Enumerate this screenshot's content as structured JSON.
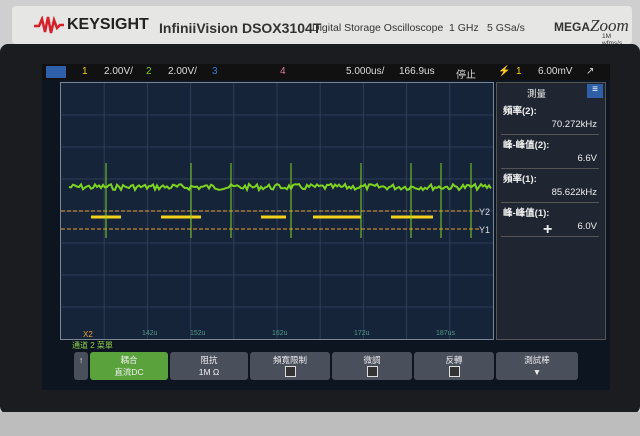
{
  "brand": {
    "name": "KEYSIGHT",
    "model": "InfiniiVision DSOX3104T",
    "description": "Digital Storage Oscilloscope",
    "bandwidth": "1 GHz",
    "sample_rate": "5 GSa/s",
    "mega": "MEGA",
    "zoom": "Zoom",
    "wfms": "1M wfms/s"
  },
  "status": {
    "ch1_label": "1",
    "ch1_scale": "2.00V/",
    "ch2_label": "2",
    "ch2_scale": "2.00V/",
    "ch3_label": "3",
    "ch4_label": "4",
    "timebase": "5.000us/",
    "delay": "166.9us",
    "run_state": "停止",
    "trigger_source": "1",
    "trigger_level": "6.00mV"
  },
  "colors": {
    "ch1": "#f2d21b",
    "ch2": "#7ed321",
    "ch3": "#3a7bd5",
    "ch4": "#e07aa0",
    "cursor": "#e8a030",
    "menu_accent": "#2e5fa8"
  },
  "measurements": {
    "title": "測量",
    "items": [
      {
        "label": "頻率(2):",
        "value": "70.272kHz"
      },
      {
        "label": "峰-峰值(2):",
        "value": "6.6V"
      },
      {
        "label": "頻率(1):",
        "value": "85.622kHz"
      },
      {
        "label": "峰-峰值(1):",
        "value": "6.0V"
      }
    ],
    "add": "+"
  },
  "cursors": {
    "y1": "Y1",
    "y2": "Y2",
    "x2": "X2"
  },
  "time_labels": [
    "142u",
    "152u",
    "162u",
    "172u",
    "187us"
  ],
  "softkeys": {
    "menu_title": "通道 2 菜單",
    "keys": [
      {
        "title": "耦合",
        "value": "直流DC"
      },
      {
        "title": "阻抗",
        "value": "1M Ω"
      },
      {
        "title": "頻寬限制",
        "value": ""
      },
      {
        "title": "微調",
        "value": ""
      },
      {
        "title": "反轉",
        "value": ""
      },
      {
        "title": "測試棒",
        "value": ""
      }
    ]
  }
}
